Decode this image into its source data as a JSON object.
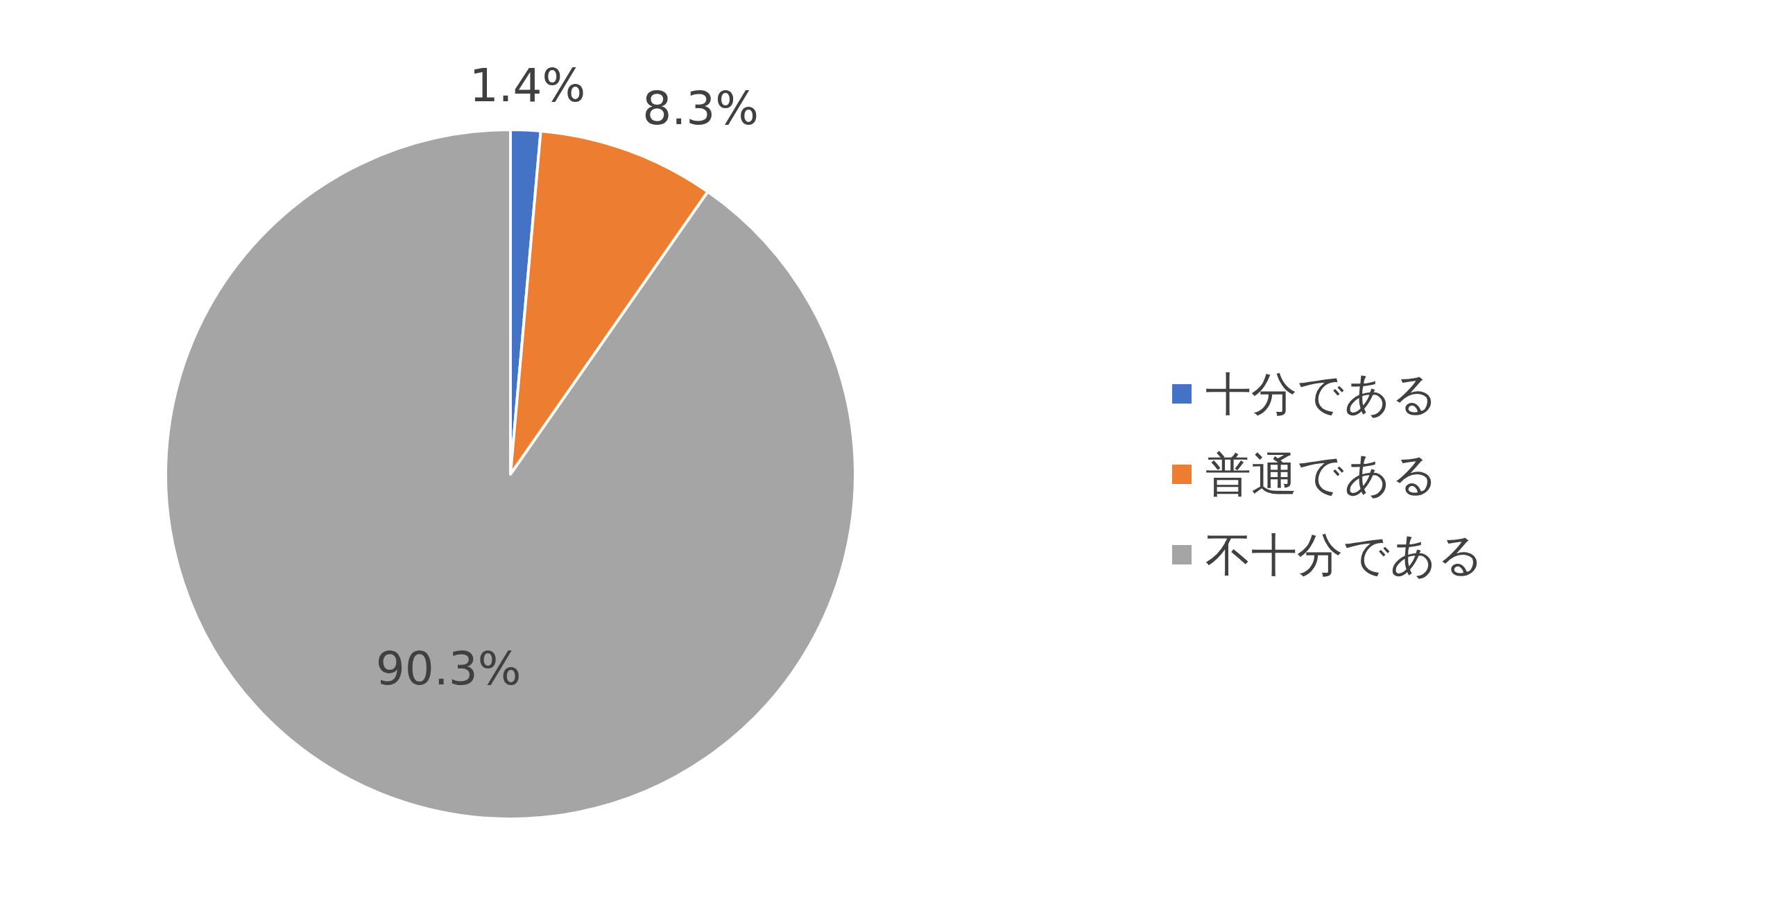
{
  "chart_data": {
    "type": "pie",
    "categories": [
      "十分である",
      "普通である",
      "不十分である"
    ],
    "values": [
      1.4,
      8.3,
      90.3
    ],
    "colors": [
      "#4472c4",
      "#ed7d31",
      "#a5a5a5"
    ],
    "value_labels": [
      "1.4%",
      "8.3%",
      "90.3%"
    ],
    "legend": "right"
  }
}
